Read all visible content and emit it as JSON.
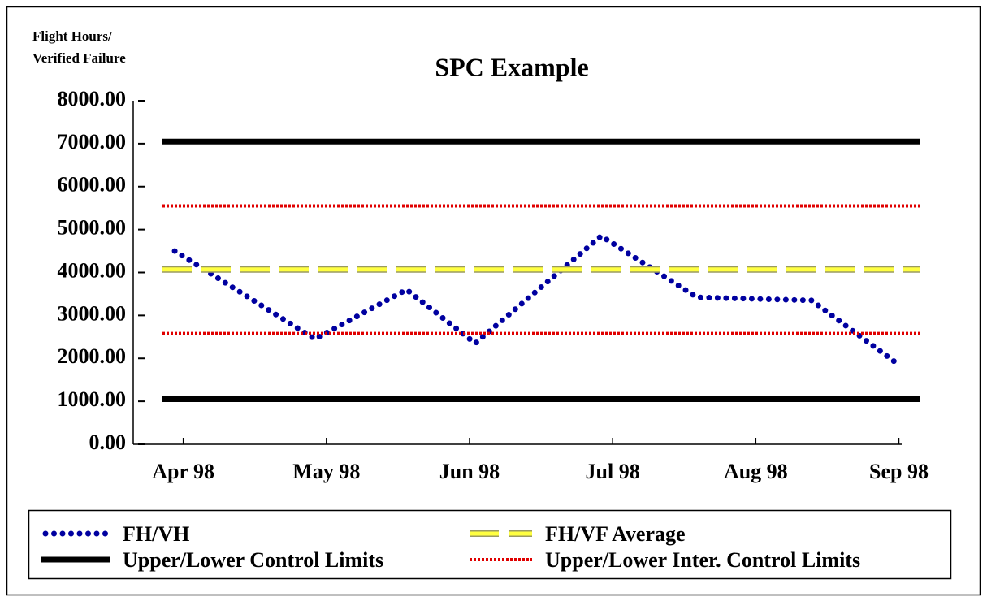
{
  "chart_data": {
    "type": "spc",
    "title": "SPC Example",
    "y_label": [
      "Flight Hours/",
      "Verified Failure"
    ],
    "xlim": [
      -0.35,
      5.02
    ],
    "xticks": [
      {
        "value": 0,
        "label": "Apr 98"
      },
      {
        "value": 1,
        "label": "May 98"
      },
      {
        "value": 2,
        "label": "Jun 98"
      },
      {
        "value": 3,
        "label": "Jul 98"
      },
      {
        "value": 4,
        "label": "Aug 98"
      },
      {
        "value": 5,
        "label": "Sep 98"
      }
    ],
    "ylim": [
      0,
      8000
    ],
    "yticks": [
      {
        "value": 0,
        "label": "0.00"
      },
      {
        "value": 1000,
        "label": "1000.00"
      },
      {
        "value": 2000,
        "label": "2000.00"
      },
      {
        "value": 3000,
        "label": "3000.00"
      },
      {
        "value": 4000,
        "label": "4000.00"
      },
      {
        "value": 5000,
        "label": "5000.00"
      },
      {
        "value": 6000,
        "label": "6000.00"
      },
      {
        "value": 7000,
        "label": "7000.00"
      },
      {
        "value": 8000,
        "label": "8000.00"
      }
    ],
    "series": [
      {
        "name": "FH/VH",
        "color": "#0000a0",
        "style": "dots",
        "x": [
          -0.06,
          0.92,
          1.56,
          2.04,
          2.92,
          3.59,
          4.39,
          5.0
        ],
        "values": [
          4500,
          2450,
          3600,
          2350,
          4850,
          3420,
          3350,
          1850
        ]
      },
      {
        "name": "FH/VF Average",
        "color": "#ffff40",
        "style": "dash",
        "values": [
          4070
        ]
      },
      {
        "name": "Upper/Lower Control Limits",
        "color": "#000000",
        "style": "solid",
        "values": [
          7050,
          1050
        ]
      },
      {
        "name": "Upper/Lower Inter. Control Limits",
        "color": "#e00000",
        "style": "dotted",
        "values": [
          5550,
          2580
        ]
      }
    ]
  }
}
